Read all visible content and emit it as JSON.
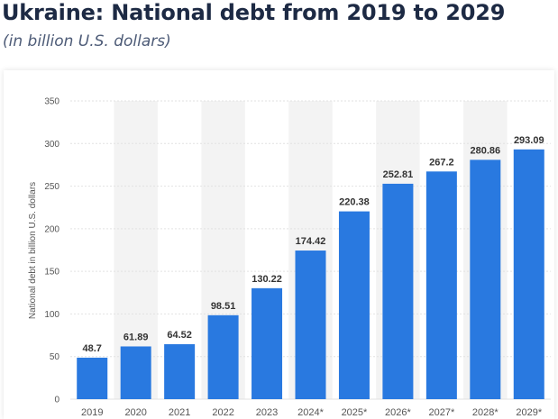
{
  "title": "Ukraine: National debt from 2019 to 2029",
  "subtitle": "(in billion U.S. dollars)",
  "colors": {
    "bar": "#2979e0",
    "band": "#f3f3f3",
    "grid": "#e2e2e2"
  },
  "chart_data": {
    "type": "bar",
    "title": "Ukraine: National debt from 2019 to 2029",
    "subtitle": "(in billion U.S. dollars)",
    "xlabel": "",
    "ylabel": "National debt in billion U.S. dollars",
    "categories": [
      "2019",
      "2020",
      "2021",
      "2022",
      "2023",
      "2024*",
      "2025*",
      "2026*",
      "2027*",
      "2028*",
      "2029*"
    ],
    "values": [
      48.7,
      61.89,
      64.52,
      98.51,
      130.22,
      174.42,
      220.38,
      252.81,
      267.2,
      280.86,
      293.09
    ],
    "value_labels": [
      "48.7",
      "61.89",
      "64.52",
      "98.51",
      "130.22",
      "174.42",
      "220.38",
      "252.81",
      "267.2",
      "280.86",
      "293.09"
    ],
    "ylim": [
      0,
      350
    ],
    "yticks": [
      0,
      50,
      100,
      150,
      200,
      250,
      300,
      350
    ],
    "grid": true,
    "legend": "none"
  }
}
